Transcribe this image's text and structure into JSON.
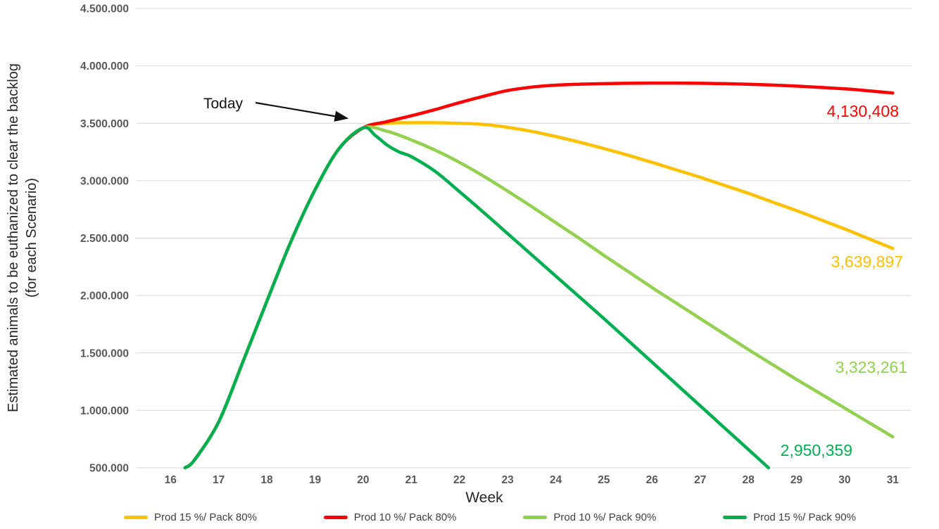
{
  "chart": {
    "y_axis_title_line1": "Estimated animals to be euthanized to clear the backlog",
    "y_axis_title_line2": "(for each Scenario)",
    "x_axis_title": "Week",
    "annotation_today": "Today"
  },
  "chart_data": {
    "type": "line",
    "title": "",
    "xlabel": "Week",
    "ylabel": "Estimated animals to be euthanized to clear the backlog (for each Scenario)",
    "xlim": [
      15.28,
      31.39
    ],
    "ylim": [
      500000,
      4500000
    ],
    "grid": "horizontal",
    "legend_position": "bottom",
    "x_ticks": [
      16,
      17,
      18,
      19,
      20,
      21,
      22,
      23,
      24,
      25,
      26,
      27,
      28,
      29,
      30,
      31
    ],
    "y_ticks": [
      500000,
      1000000,
      1500000,
      2000000,
      2500000,
      3000000,
      3500000,
      4000000,
      4500000
    ],
    "y_tick_labels": [
      "500.000",
      "1.000.000",
      "1.500.000",
      "2.000.000",
      "2.500.000",
      "3.000.000",
      "3.500.000",
      "4.000.000",
      "4.500.000"
    ],
    "annotations": [
      {
        "text": "Today",
        "target": {
          "week": 20,
          "value": 3480000
        }
      }
    ],
    "series": [
      {
        "name": "Prod 15 %/ Pack 80%",
        "color": "#FFC000",
        "end_label": "3,639,897",
        "points": [
          [
            16.3,
            500000
          ],
          [
            16.5,
            570000
          ],
          [
            17,
            900000
          ],
          [
            17.5,
            1420000
          ],
          [
            18,
            1950000
          ],
          [
            18.5,
            2470000
          ],
          [
            19,
            2920000
          ],
          [
            19.5,
            3280000
          ],
          [
            20,
            3460000
          ],
          [
            20.5,
            3500000
          ],
          [
            21,
            3505000
          ],
          [
            21.5,
            3505000
          ],
          [
            22,
            3500000
          ],
          [
            22.5,
            3490000
          ],
          [
            23,
            3465000
          ],
          [
            23.5,
            3430000
          ],
          [
            24,
            3385000
          ],
          [
            24.5,
            3335000
          ],
          [
            25,
            3280000
          ],
          [
            25.5,
            3222000
          ],
          [
            26,
            3160000
          ],
          [
            26.5,
            3095000
          ],
          [
            27,
            3030000
          ],
          [
            27.5,
            2960000
          ],
          [
            28,
            2890000
          ],
          [
            28.5,
            2815000
          ],
          [
            29,
            2740000
          ],
          [
            29.5,
            2660000
          ],
          [
            30,
            2580000
          ],
          [
            30.5,
            2495000
          ],
          [
            31,
            2410000
          ]
        ]
      },
      {
        "name": "Prod 10 %/ Pack 80%",
        "color": "#FF0000",
        "end_label": "4,130,408",
        "points": [
          [
            16.3,
            500000
          ],
          [
            16.5,
            570000
          ],
          [
            17,
            900000
          ],
          [
            17.5,
            1420000
          ],
          [
            18,
            1950000
          ],
          [
            18.5,
            2470000
          ],
          [
            19,
            2920000
          ],
          [
            19.5,
            3280000
          ],
          [
            20,
            3460000
          ],
          [
            20.5,
            3515000
          ],
          [
            21,
            3565000
          ],
          [
            21.5,
            3620000
          ],
          [
            22,
            3680000
          ],
          [
            22.5,
            3735000
          ],
          [
            23,
            3785000
          ],
          [
            23.5,
            3815000
          ],
          [
            24,
            3832000
          ],
          [
            24.5,
            3840000
          ],
          [
            25,
            3845000
          ],
          [
            25.5,
            3848000
          ],
          [
            26,
            3850000
          ],
          [
            26.5,
            3850000
          ],
          [
            27,
            3848000
          ],
          [
            27.5,
            3845000
          ],
          [
            28,
            3840000
          ],
          [
            28.5,
            3833000
          ],
          [
            29,
            3824000
          ],
          [
            29.5,
            3813000
          ],
          [
            30,
            3800000
          ],
          [
            30.5,
            3783000
          ],
          [
            31,
            3763000
          ]
        ]
      },
      {
        "name": "Prod 10 %/ Pack 90%",
        "color": "#92D050",
        "end_label": "3,323,261",
        "points": [
          [
            16.3,
            500000
          ],
          [
            16.5,
            570000
          ],
          [
            17,
            900000
          ],
          [
            17.5,
            1420000
          ],
          [
            18,
            1950000
          ],
          [
            18.5,
            2470000
          ],
          [
            19,
            2920000
          ],
          [
            19.5,
            3280000
          ],
          [
            20,
            3460000
          ],
          [
            20.5,
            3430000
          ],
          [
            21,
            3355000
          ],
          [
            21.5,
            3265000
          ],
          [
            22,
            3160000
          ],
          [
            22.5,
            3040000
          ],
          [
            23,
            2910000
          ],
          [
            23.5,
            2775000
          ],
          [
            24,
            2635000
          ],
          [
            24.5,
            2495000
          ],
          [
            25,
            2350000
          ],
          [
            25.5,
            2210000
          ],
          [
            26,
            2070000
          ],
          [
            26.5,
            1935000
          ],
          [
            27,
            1800000
          ],
          [
            27.5,
            1665000
          ],
          [
            28,
            1530000
          ],
          [
            28.5,
            1400000
          ],
          [
            29,
            1270000
          ],
          [
            29.5,
            1145000
          ],
          [
            30,
            1020000
          ],
          [
            30.5,
            895000
          ],
          [
            31,
            770000
          ]
        ]
      },
      {
        "name": "Prod 15 %/ Pack 90%",
        "color": "#00B050",
        "end_label": "2,950,359",
        "points": [
          [
            16.3,
            500000
          ],
          [
            16.5,
            570000
          ],
          [
            17,
            900000
          ],
          [
            17.5,
            1420000
          ],
          [
            18,
            1950000
          ],
          [
            18.5,
            2470000
          ],
          [
            19,
            2920000
          ],
          [
            19.5,
            3280000
          ],
          [
            20,
            3460000
          ],
          [
            20.25,
            3395000
          ],
          [
            20.5,
            3310000
          ],
          [
            20.75,
            3250000
          ],
          [
            21,
            3210000
          ],
          [
            21.5,
            3080000
          ],
          [
            22,
            2905000
          ],
          [
            22.5,
            2725000
          ],
          [
            23,
            2540000
          ],
          [
            23.5,
            2355000
          ],
          [
            24,
            2170000
          ],
          [
            24.5,
            1985000
          ],
          [
            25,
            1800000
          ],
          [
            25.5,
            1610000
          ],
          [
            26,
            1420000
          ],
          [
            26.5,
            1230000
          ],
          [
            27,
            1040000
          ],
          [
            27.5,
            850000
          ],
          [
            28,
            660000
          ],
          [
            28.42,
            500000
          ]
        ]
      }
    ]
  }
}
